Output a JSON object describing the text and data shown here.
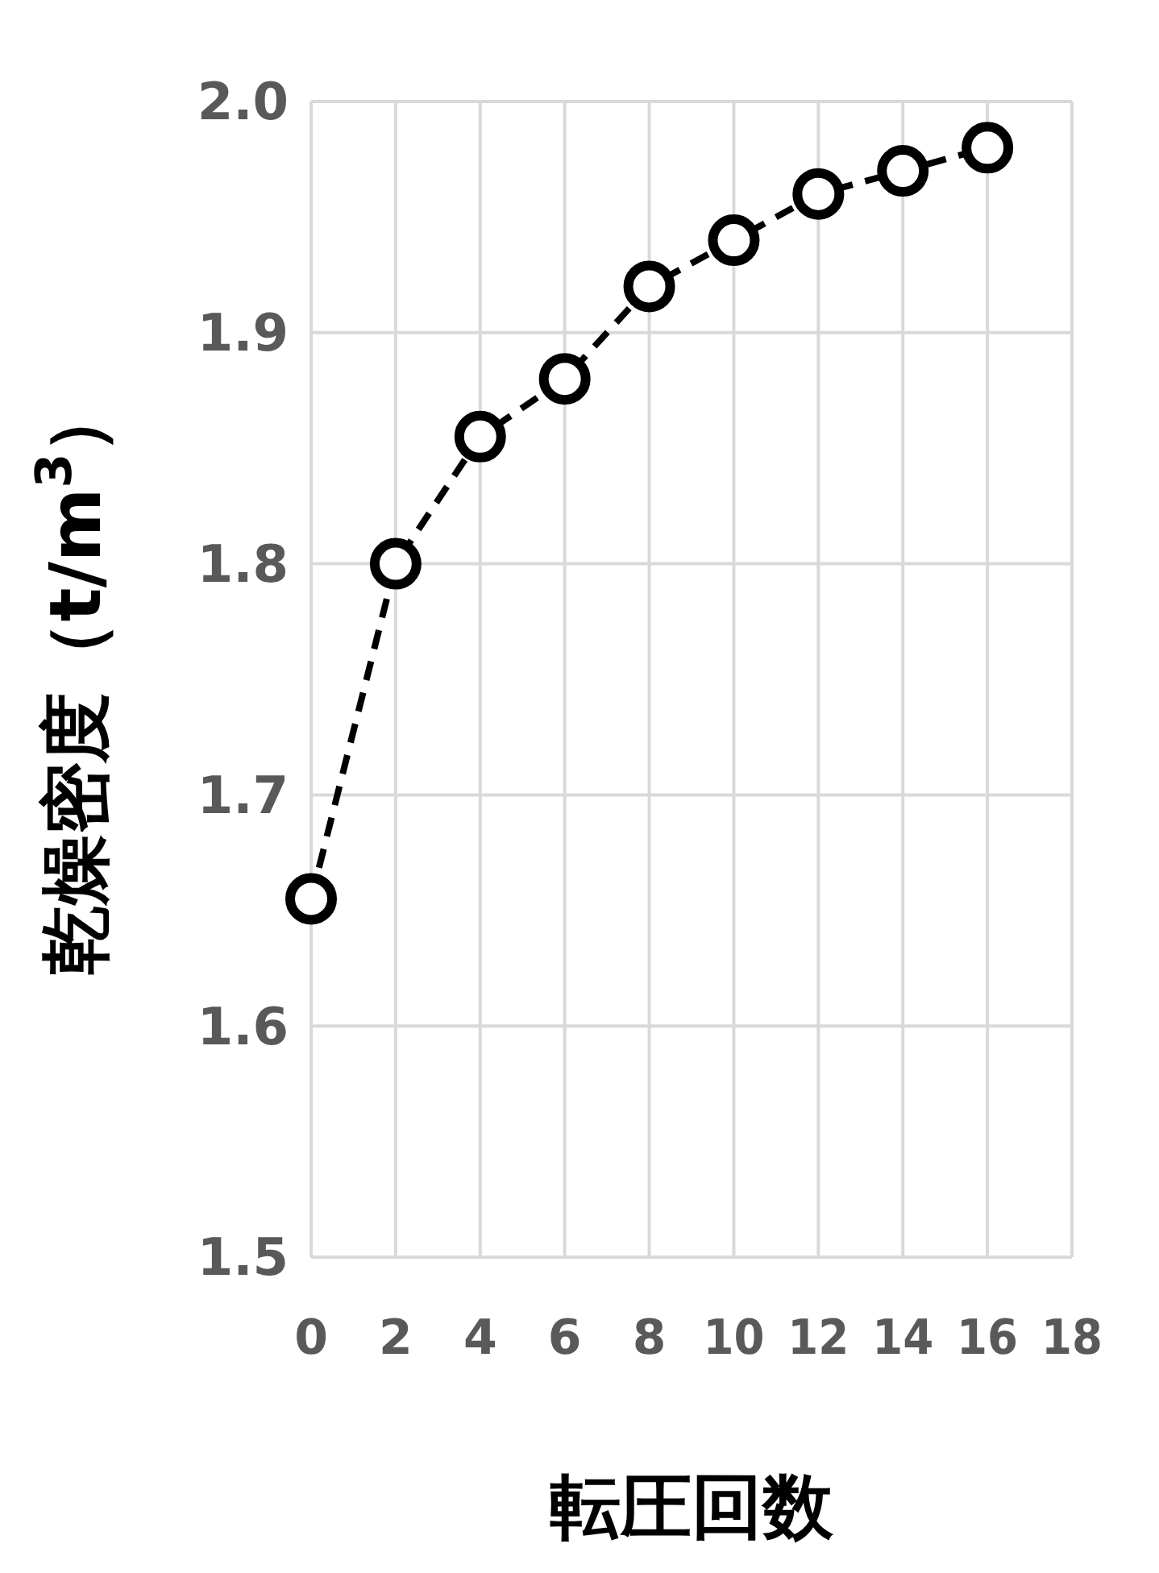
{
  "chart_data": {
    "type": "line",
    "xlabel": "転圧回数",
    "ylabel": "乾燥密度（t/m$^{3}$）",
    "x": [
      0,
      2,
      4,
      6,
      8,
      10,
      12,
      14,
      16
    ],
    "series": [
      {
        "color": "#000000",
        "values": [
          1.655,
          1.8,
          1.855,
          1.88,
          1.92,
          1.94,
          1.96,
          1.97,
          1.98
        ]
      }
    ],
    "xlim": [
      0,
      18
    ],
    "xticks": [
      0,
      2,
      4,
      6,
      8,
      10,
      12,
      14,
      16,
      18
    ],
    "ylim": [
      1.5,
      2.0
    ],
    "yticks": [
      {
        "value": 1.5,
        "label": "1.5"
      },
      {
        "value": 1.6,
        "label": "1.6"
      },
      {
        "value": 1.7,
        "label": "1.7"
      },
      {
        "value": 1.8,
        "label": "1.8"
      },
      {
        "value": 1.9,
        "label": "1.9"
      },
      {
        "value": 2.0,
        "label": "2.0"
      }
    ],
    "grid": true,
    "marker": "circle",
    "line_style": "dashed"
  }
}
